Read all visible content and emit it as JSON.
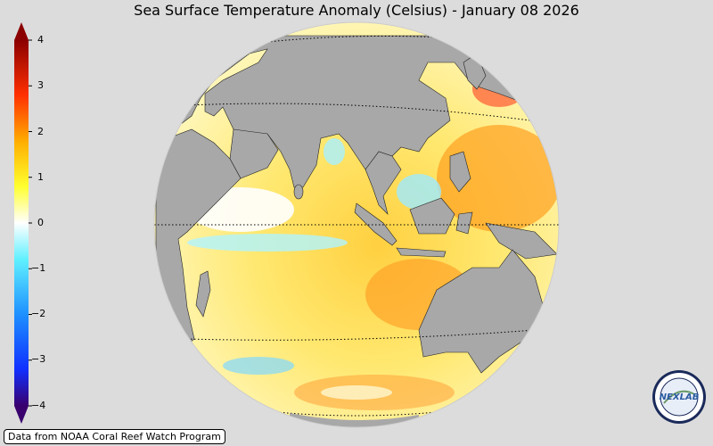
{
  "title": "Sea Surface Temperature Anomaly (Celsius) - January 08 2026",
  "colorbar": {
    "ticks": [
      "4",
      "3",
      "2",
      "1",
      "0",
      "−1",
      "−2",
      "−3",
      "−4"
    ],
    "range": [
      -4,
      4
    ],
    "colors": [
      "#3a006e",
      "#1040ff",
      "#1e90ff",
      "#40e0ff",
      "#ffffff",
      "#ffff40",
      "#ffb000",
      "#ff4000",
      "#e00000",
      "#8b0000"
    ]
  },
  "credit": "Data from NOAA Coral Reef Watch Program",
  "logo": {
    "icon": "nexlab-logo-icon",
    "text": "NEXLAB"
  },
  "map": {
    "projection": "orthographic",
    "land_color": "#a8a8a8",
    "background_color": "#dcdcdc",
    "gridlines": "dotted"
  }
}
